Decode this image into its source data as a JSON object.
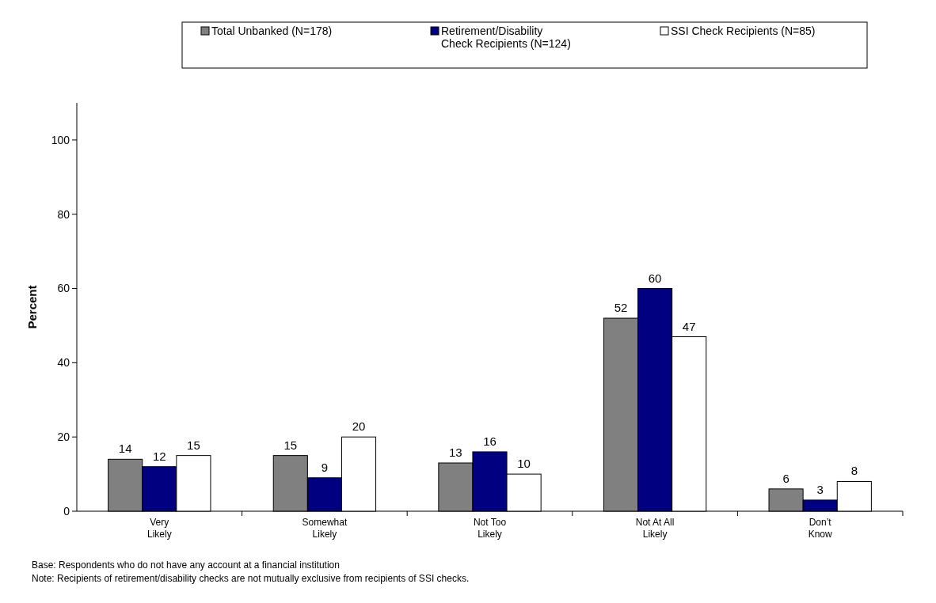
{
  "chart_data": {
    "type": "bar",
    "ylabel": "Percent",
    "categories": [
      "Very\nLikely",
      "Somewhat\nLikely",
      "Not Too\nLikely",
      "Not At All\nLikely",
      "Don’t\nKnow"
    ],
    "series": [
      {
        "name": "Total Unbanked (N=178)",
        "color": "#808080",
        "values": [
          14,
          15,
          13,
          52,
          6
        ]
      },
      {
        "name": "Retirement/Disability\nCheck Recipients (N=124)",
        "color": "#000080",
        "values": [
          12,
          9,
          16,
          60,
          3
        ]
      },
      {
        "name": "SSI Check Recipients (N=85)",
        "color": "#ffffff",
        "values": [
          15,
          20,
          10,
          47,
          8
        ]
      }
    ],
    "ylim": [
      0,
      110
    ],
    "yticks": [
      0,
      20,
      40,
      60,
      80,
      100
    ],
    "data_labels": true,
    "legend": "top",
    "grid": false,
    "annotations": [
      "Base:  Respondents who do not have any account at a financial institution",
      "Note:  Recipients of retirement/disability checks are not mutually exclusive from recipients of SSI checks."
    ]
  }
}
